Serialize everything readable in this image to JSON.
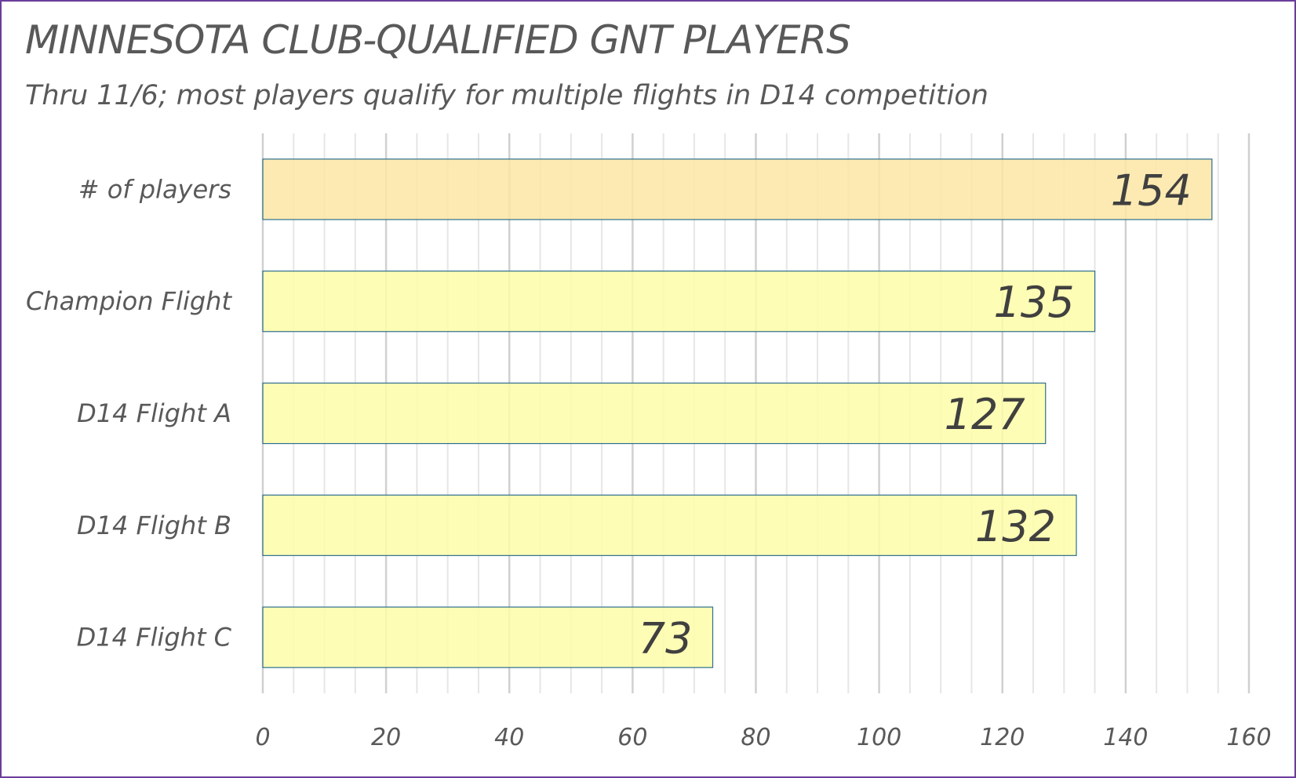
{
  "chart_data": {
    "type": "bar",
    "orientation": "horizontal",
    "title": "MINNESOTA CLUB-QUALIFIED GNT PLAYERS",
    "subtitle": "Thru 11/6; most players qualify for multiple flights in D14 competition",
    "categories": [
      "# of players",
      "Champion Flight",
      "D14 Flight A",
      "D14 Flight B",
      "D14 Flight C"
    ],
    "values": [
      154,
      135,
      127,
      132,
      73
    ],
    "bar_colors": [
      "#fce6a4",
      "#fdfda8",
      "#fdfda8",
      "#fdfda8",
      "#fdfda8"
    ],
    "bar_border_color": "#2e6f8e",
    "xlim": [
      0,
      160
    ],
    "x_ticks": [
      0,
      20,
      40,
      60,
      80,
      100,
      120,
      140,
      160
    ],
    "grid": true,
    "legend": "none",
    "data_labels": true
  },
  "colors": {
    "frame_border": "#6a3d9a",
    "text": "#595959",
    "major_grid": "#d0d0d0",
    "minor_grid": "#e6e6e6"
  }
}
